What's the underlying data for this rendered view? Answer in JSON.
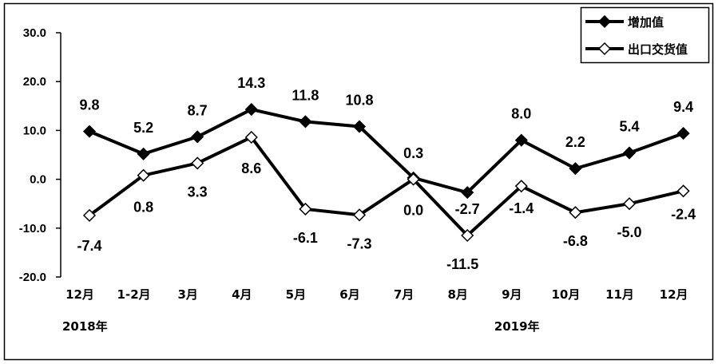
{
  "chart_data": {
    "type": "line",
    "categories": [
      "12月",
      "1-2月",
      "3月",
      "4月",
      "5月",
      "6月",
      "7月",
      "8月",
      "9月",
      "10月",
      "11月",
      "12月"
    ],
    "year_labels": [
      {
        "text": "2018年",
        "index": 0
      },
      {
        "text": "2019年",
        "index": 8
      }
    ],
    "yticks": [
      "30.0",
      "20.0",
      "10.0",
      "0.0",
      "-10.0",
      "-20.0"
    ],
    "ylim": [
      -20,
      30
    ],
    "grid": false,
    "legend_position": "top-right",
    "series": [
      {
        "name": "增加值",
        "marker": "filled-diamond",
        "values": [
          9.8,
          5.2,
          8.7,
          14.3,
          11.8,
          10.8,
          0.3,
          -2.7,
          8.0,
          2.2,
          5.4,
          9.4
        ],
        "labels": [
          "9.8",
          "5.2",
          "8.7",
          "14.3",
          "11.8",
          "10.8",
          "0.3",
          "-2.7",
          "8.0",
          "2.2",
          "5.4",
          "9.4"
        ]
      },
      {
        "name": "出口交货值",
        "marker": "hollow-diamond",
        "values": [
          -7.4,
          0.8,
          3.3,
          8.6,
          -6.1,
          -7.3,
          0.0,
          -11.5,
          -1.4,
          -6.8,
          -5.0,
          -2.4
        ],
        "labels": [
          "-7.4",
          "0.8",
          "3.3",
          "8.6",
          "-6.1",
          "-7.3",
          "0.0",
          "-11.5",
          "-1.4",
          "-6.8",
          "-5.0",
          "-2.4"
        ]
      }
    ],
    "colors": {
      "line": "#000000",
      "background": "#ffffff"
    }
  }
}
